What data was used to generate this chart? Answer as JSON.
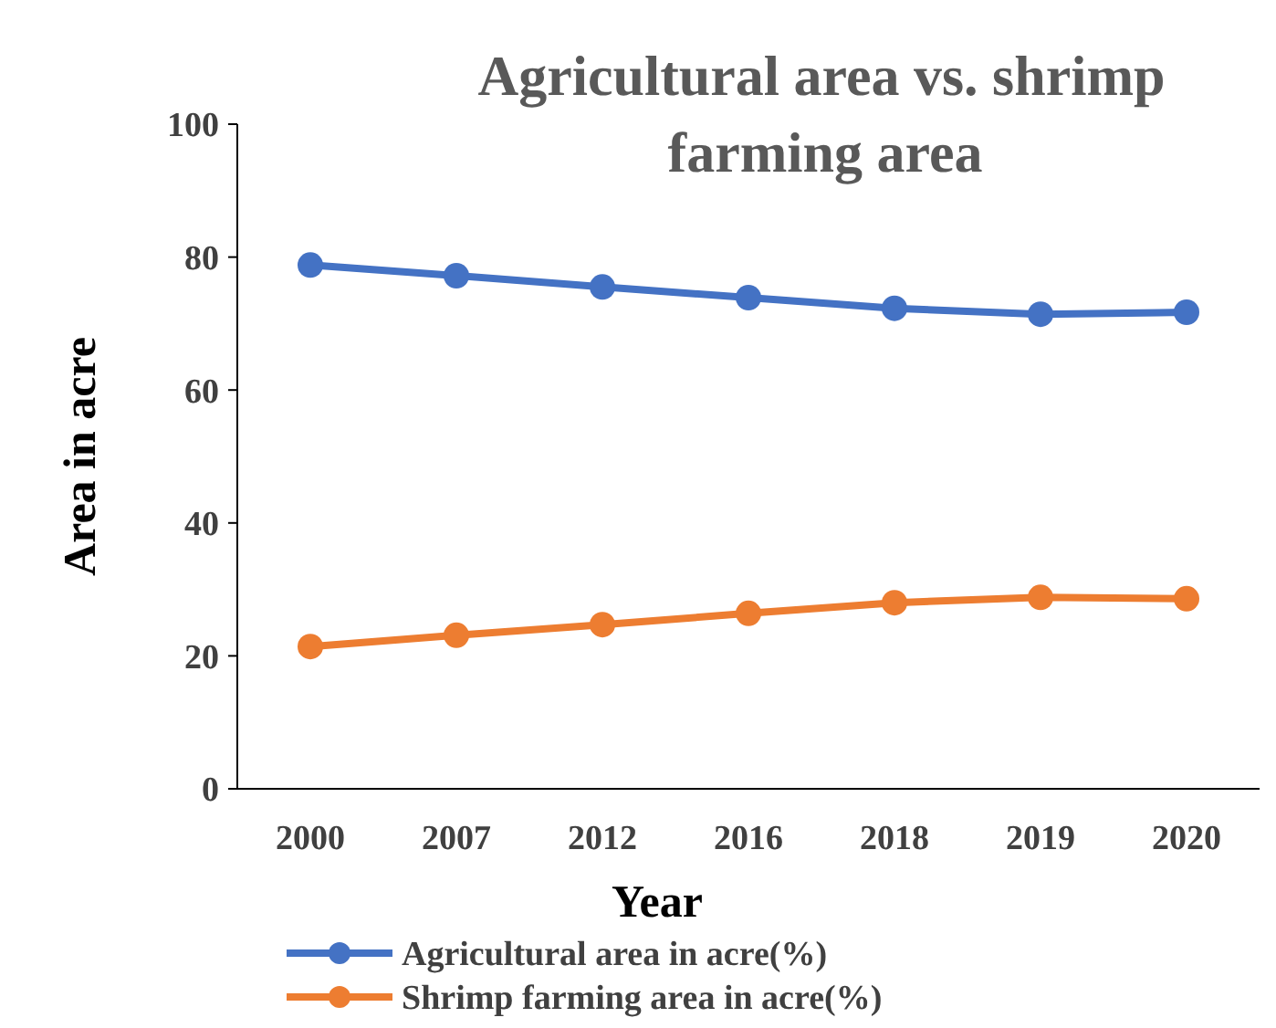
{
  "chart_data": {
    "type": "line",
    "title": "Agricultural area vs. shrimp farming area",
    "xlabel": "Year",
    "ylabel": "Area in acre",
    "categories": [
      "2000",
      "2007",
      "2012",
      "2016",
      "2018",
      "2019",
      "2020"
    ],
    "series": [
      {
        "name": "Agricultural area in acre(%)",
        "color": "#4472c4",
        "values": [
          78.8,
          77.2,
          75.5,
          73.9,
          72.3,
          71.4,
          71.7
        ]
      },
      {
        "name": "Shrimp farming area in acre(%)",
        "color": "#ed7d31",
        "values": [
          21.4,
          23.1,
          24.7,
          26.4,
          28.0,
          28.8,
          28.6
        ]
      }
    ],
    "ylim": [
      0,
      100
    ],
    "yticks": [
      0,
      20,
      40,
      60,
      80,
      100
    ],
    "grid": false,
    "legend": "bottom",
    "marker": "circle",
    "line_style": "solid"
  }
}
